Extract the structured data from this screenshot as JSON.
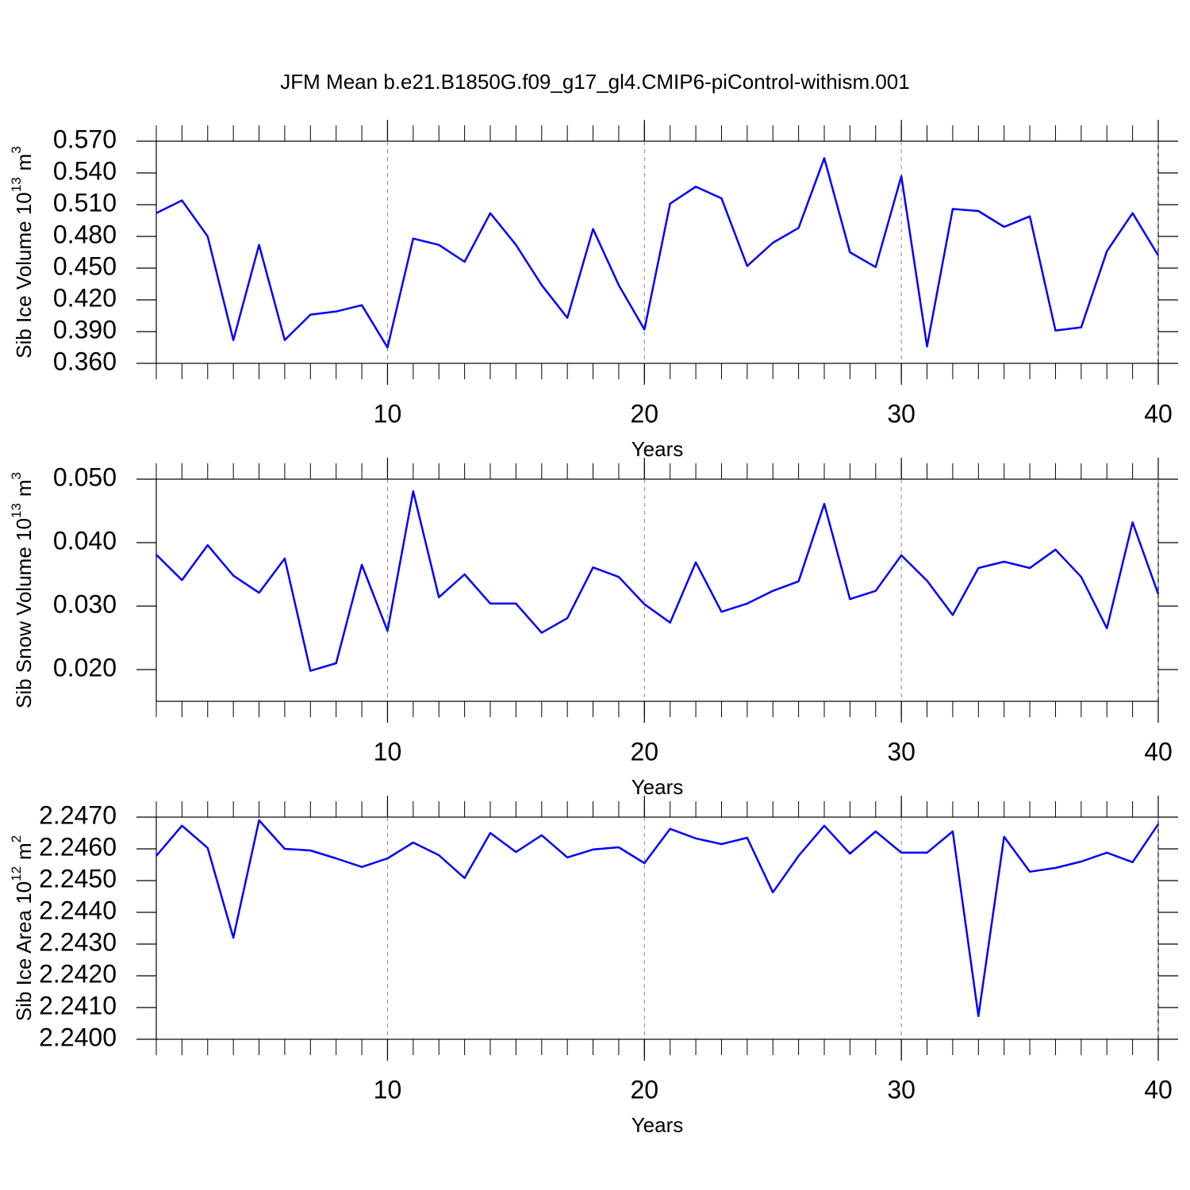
{
  "title": "JFM Mean b.e21.B1850G.f09_g17_gl4.CMIP6-piControl-withism.001",
  "chart_data": [
    {
      "type": "line",
      "xlabel": "Years",
      "ylabel": {
        "base": "Sib Ice Volume 10",
        "exponent": "13",
        "unit": "m",
        "unit_exponent": "3"
      },
      "x": [
        1,
        2,
        3,
        4,
        5,
        6,
        7,
        8,
        9,
        10,
        11,
        12,
        13,
        14,
        15,
        16,
        17,
        18,
        19,
        20,
        21,
        22,
        23,
        24,
        25,
        26,
        27,
        28,
        29,
        30,
        31,
        32,
        33,
        34,
        35,
        36,
        37,
        38,
        39,
        40
      ],
      "series": [
        {
          "color": "#0000ff",
          "values": [
            0.502,
            0.514,
            0.48,
            0.382,
            0.472,
            0.382,
            0.406,
            0.409,
            0.415,
            0.375,
            0.478,
            0.472,
            0.456,
            0.502,
            0.472,
            0.434,
            0.403,
            0.487,
            0.434,
            0.392,
            0.511,
            0.527,
            0.516,
            0.452,
            0.474,
            0.488,
            0.554,
            0.465,
            0.451,
            0.537,
            0.376,
            0.506,
            0.504,
            0.489,
            0.499,
            0.391,
            0.394,
            0.466,
            0.502,
            0.462
          ]
        }
      ],
      "xlim": [
        1,
        40
      ],
      "xticks": [
        10,
        20,
        30,
        40
      ],
      "ylim": [
        0.36,
        0.57
      ],
      "yticks": [
        {
          "value": 0.36,
          "label": "0.360"
        },
        {
          "value": 0.39,
          "label": "0.390"
        },
        {
          "value": 0.42,
          "label": "0.420"
        },
        {
          "value": 0.45,
          "label": "0.450"
        },
        {
          "value": 0.48,
          "label": "0.480"
        },
        {
          "value": 0.51,
          "label": "0.510"
        },
        {
          "value": 0.54,
          "label": "0.540"
        },
        {
          "value": 0.57,
          "label": "0.570"
        }
      ],
      "grid": "x"
    },
    {
      "type": "line",
      "xlabel": "Years",
      "ylabel": {
        "base": "Sib Snow Volume 10",
        "exponent": "13",
        "unit": "m",
        "unit_exponent": "3"
      },
      "x": [
        1,
        2,
        3,
        4,
        5,
        6,
        7,
        8,
        9,
        10,
        11,
        12,
        13,
        14,
        15,
        16,
        17,
        18,
        19,
        20,
        21,
        22,
        23,
        24,
        25,
        26,
        27,
        28,
        29,
        30,
        31,
        32,
        33,
        34,
        35,
        36,
        37,
        38,
        39,
        40
      ],
      "series": [
        {
          "color": "#0000ff",
          "values": [
            0.0381,
            0.0341,
            0.0396,
            0.0348,
            0.0321,
            0.0375,
            0.0198,
            0.021,
            0.0365,
            0.0261,
            0.0481,
            0.0314,
            0.035,
            0.0304,
            0.0304,
            0.0258,
            0.0281,
            0.0361,
            0.0346,
            0.0303,
            0.0274,
            0.0369,
            0.0291,
            0.0304,
            0.0324,
            0.0339,
            0.0461,
            0.0311,
            0.0324,
            0.038,
            0.034,
            0.0286,
            0.036,
            0.037,
            0.036,
            0.0389,
            0.0346,
            0.0265,
            0.0432,
            0.0319
          ]
        }
      ],
      "xlim": [
        1,
        40
      ],
      "xticks": [
        10,
        20,
        30,
        40
      ],
      "ylim": [
        0.015,
        0.05
      ],
      "yticks": [
        {
          "value": 0.02,
          "label": "0.020"
        },
        {
          "value": 0.03,
          "label": "0.030"
        },
        {
          "value": 0.04,
          "label": "0.040"
        },
        {
          "value": 0.05,
          "label": "0.050"
        }
      ],
      "grid": "x"
    },
    {
      "type": "line",
      "xlabel": "Years",
      "ylabel": {
        "base": "Sib Ice Area 10",
        "exponent": "12",
        "unit": "m",
        "unit_exponent": "2"
      },
      "x": [
        1,
        2,
        3,
        4,
        5,
        6,
        7,
        8,
        9,
        10,
        11,
        12,
        13,
        14,
        15,
        16,
        17,
        18,
        19,
        20,
        21,
        22,
        23,
        24,
        25,
        26,
        27,
        28,
        29,
        30,
        31,
        32,
        33,
        34,
        35,
        36,
        37,
        38,
        39,
        40
      ],
      "series": [
        {
          "color": "#0000ff",
          "values": [
            2.24578,
            2.24673,
            2.24603,
            2.2432,
            2.2469,
            2.246,
            2.24595,
            2.2457,
            2.24543,
            2.2457,
            2.2462,
            2.2458,
            2.24508,
            2.2465,
            2.2459,
            2.24643,
            2.24573,
            2.24598,
            2.24605,
            2.24555,
            2.24663,
            2.24633,
            2.24615,
            2.24635,
            2.24463,
            2.24578,
            2.24673,
            2.24585,
            2.24655,
            2.24588,
            2.24588,
            2.24655,
            2.24073,
            2.24638,
            2.24528,
            2.2454,
            2.2456,
            2.24588,
            2.24558,
            2.24678
          ]
        }
      ],
      "xlim": [
        1,
        40
      ],
      "xticks": [
        10,
        20,
        30,
        40
      ],
      "ylim": [
        2.24,
        2.247
      ],
      "yticks": [
        {
          "value": 2.24,
          "label": "2.2400"
        },
        {
          "value": 2.241,
          "label": "2.2410"
        },
        {
          "value": 2.242,
          "label": "2.2420"
        },
        {
          "value": 2.243,
          "label": "2.2430"
        },
        {
          "value": 2.244,
          "label": "2.2440"
        },
        {
          "value": 2.245,
          "label": "2.2450"
        },
        {
          "value": 2.246,
          "label": "2.2460"
        },
        {
          "value": 2.247,
          "label": "2.2470"
        }
      ],
      "grid": "x"
    }
  ]
}
